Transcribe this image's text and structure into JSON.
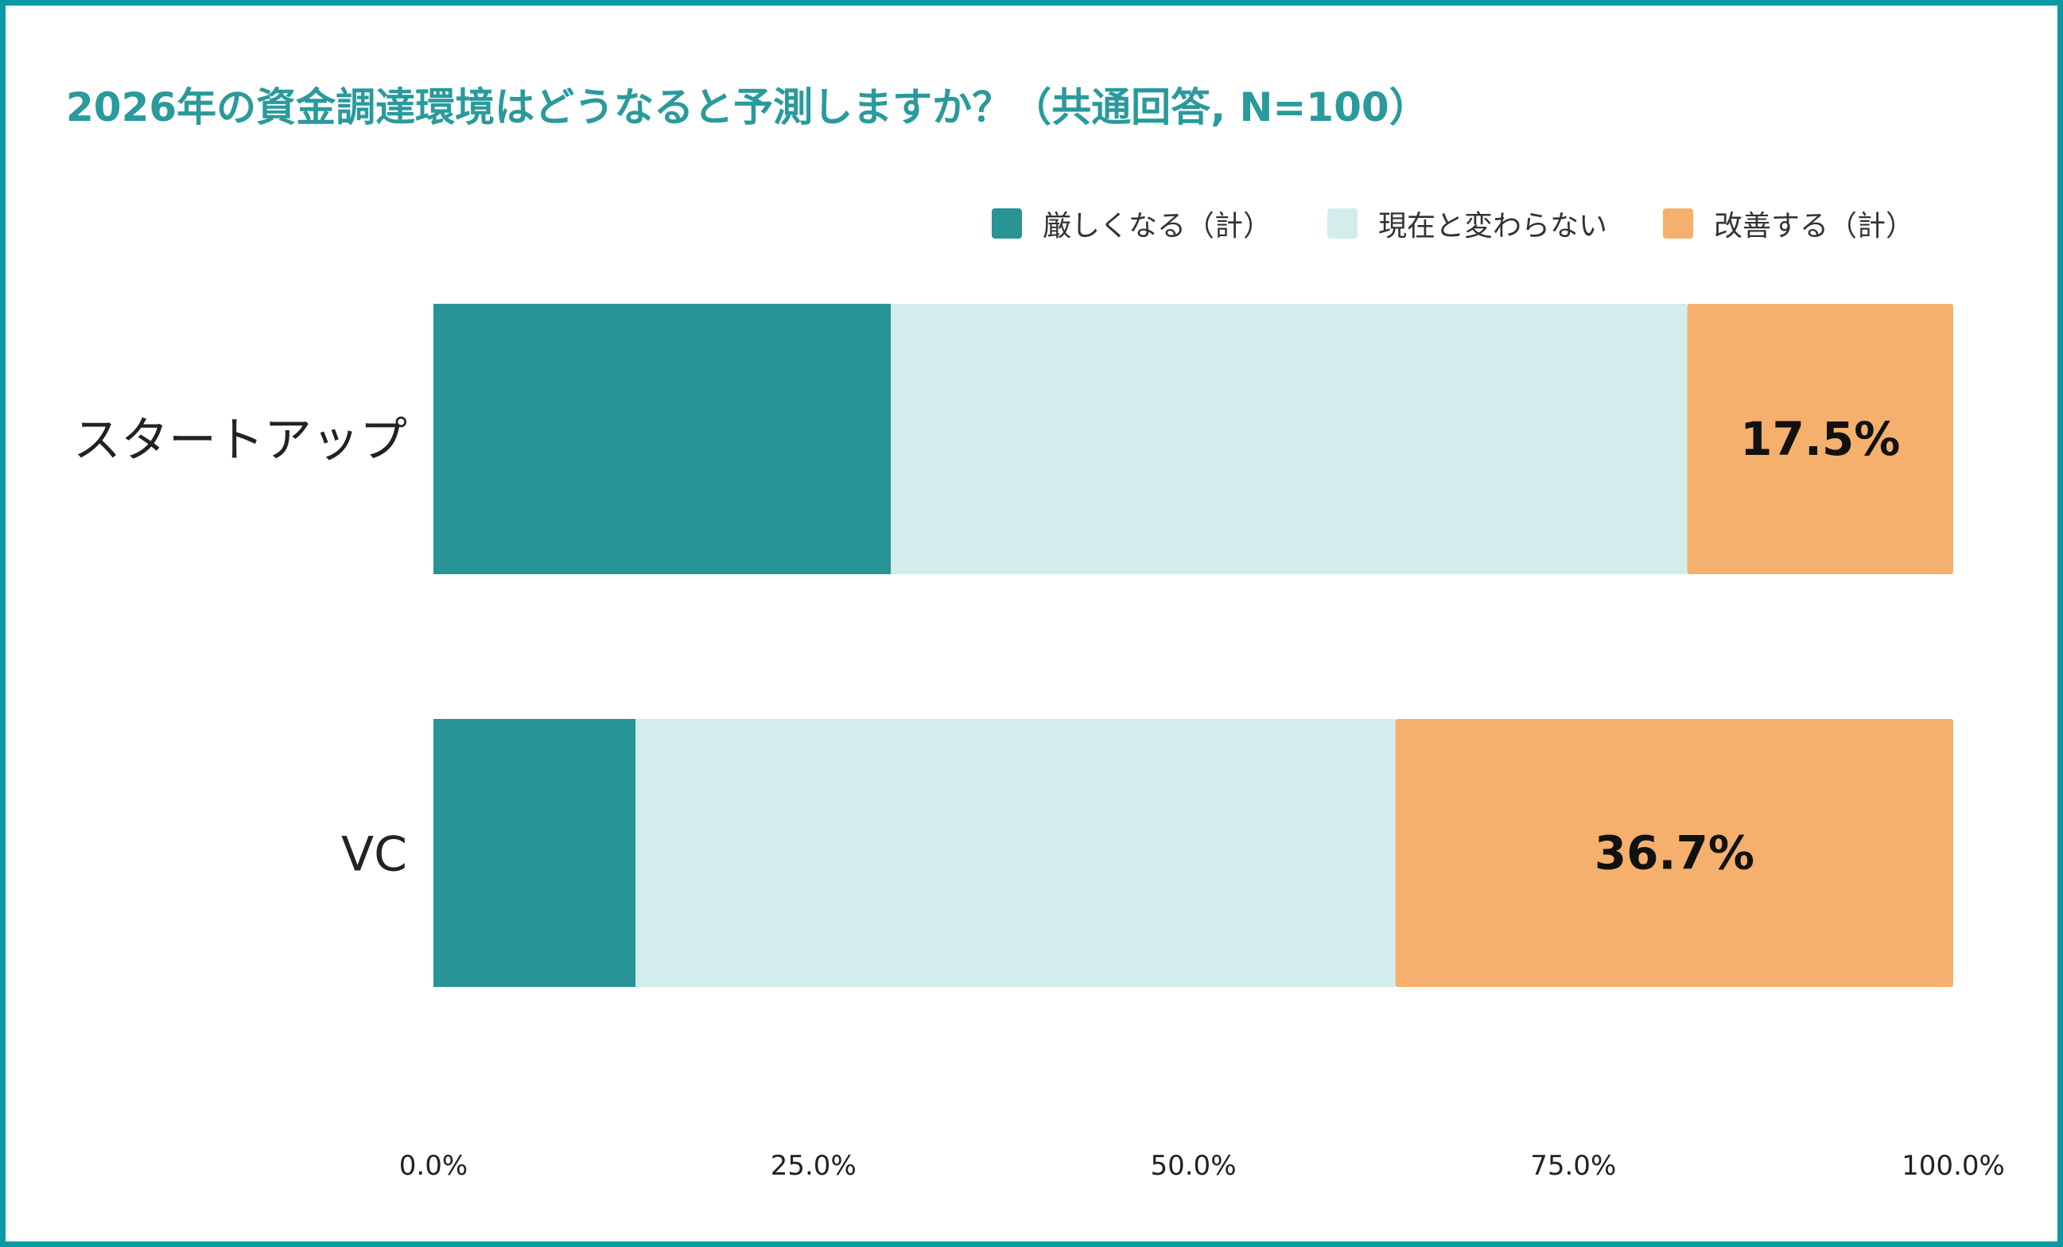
{
  "chart_data": {
    "type": "bar",
    "orientation": "horizontal",
    "stacked": true,
    "title": "2026年の資金調達環境はどうなると予測しますか？（共通回答, N=100）",
    "categories": [
      "スタートアップ",
      "VC"
    ],
    "series": [
      {
        "name": "厳しくなる（計）",
        "values": [
          30.1,
          13.3
        ],
        "color": "#289495"
      },
      {
        "name": "現在と変わらない",
        "values": [
          52.4,
          50.0
        ],
        "color": "#d3eded"
      },
      {
        "name": "改善する（計）",
        "values": [
          17.5,
          36.7
        ],
        "color": "#f5b06d"
      }
    ],
    "data_labels": [
      "17.5%",
      "36.7%"
    ],
    "xlim": [
      0,
      100
    ],
    "xticks": [
      "0.0%",
      "25.0%",
      "50.0%",
      "75.0%",
      "100.0%"
    ],
    "grid": false,
    "legend": "top-right",
    "title_color": "#2a9a9b",
    "border_color": "#0a9aa6"
  }
}
